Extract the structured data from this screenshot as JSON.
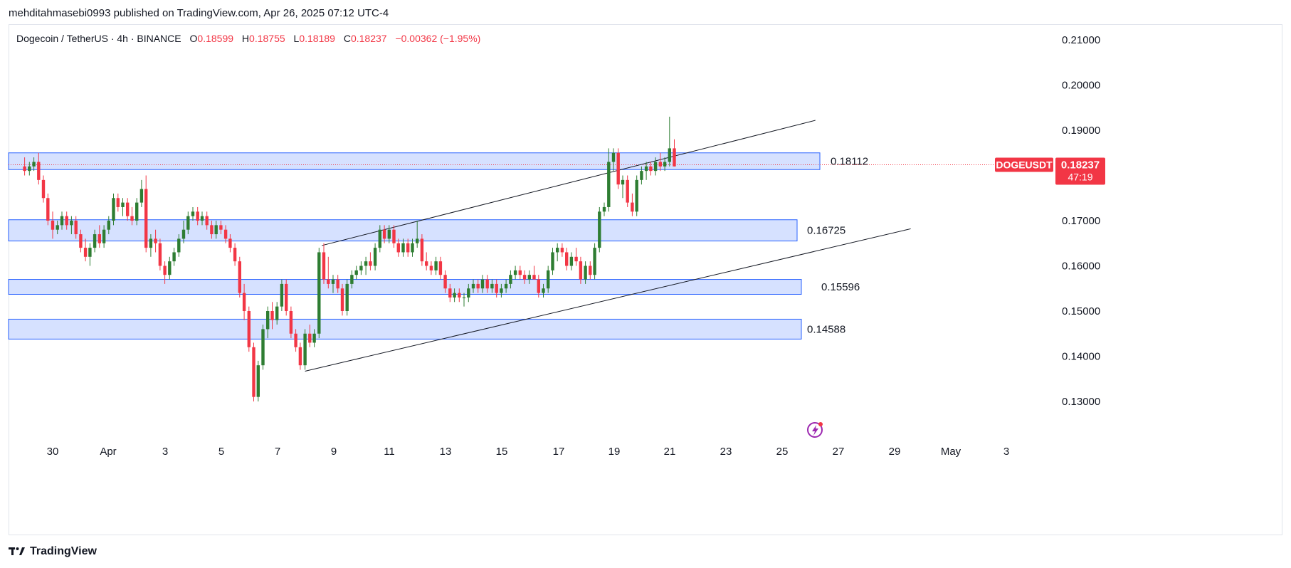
{
  "header": {
    "published_text": "mehditahmasebi0993 published on TradingView.com, Apr 26, 2025 07:12 UTC-4"
  },
  "legend": {
    "symbol_text": "Dogecoin / TetherUS · 4h · BINANCE",
    "open_label": "O",
    "open_value": "0.18599",
    "high_label": "H",
    "high_value": "0.18755",
    "low_label": "L",
    "low_value": "0.18189",
    "close_label": "C",
    "close_value": "0.18237",
    "change_text": "−0.00362 (−1.95%)"
  },
  "price_scale": {
    "labels": [
      "0.21000",
      "0.20000",
      "0.19000",
      "0.17000",
      "0.16000",
      "0.15000",
      "0.14000",
      "0.13000"
    ],
    "ticks": [
      0.21,
      0.2,
      0.19,
      0.17,
      0.16,
      0.15,
      0.14,
      0.13
    ]
  },
  "time_scale": {
    "labels": [
      "30",
      "Apr",
      "3",
      "5",
      "7",
      "9",
      "11",
      "13",
      "15",
      "17",
      "19",
      "21",
      "23",
      "25",
      "27",
      "29",
      "May",
      "3"
    ]
  },
  "current_price": {
    "symbol_label": "DOGEUSDT",
    "price": "0.18237",
    "countdown": "47:19",
    "value": 0.18237
  },
  "zones": [
    {
      "label": "0.18112",
      "top": 0.185,
      "bottom": 0.1813
    },
    {
      "label": "0.16725",
      "top": 0.1702,
      "bottom": 0.1655
    },
    {
      "label": "0.15596",
      "top": 0.157,
      "bottom": 0.1537
    },
    {
      "label": "0.14588",
      "top": 0.1482,
      "bottom": 0.1438
    }
  ],
  "trendlines": [
    {
      "name": "channel-upper",
      "from": [
        9.6,
        0.1645
      ],
      "to": [
        27.2,
        0.1922
      ]
    },
    {
      "name": "channel-lower",
      "from": [
        9.0,
        0.1367
      ],
      "to": [
        30.6,
        0.1682
      ]
    }
  ],
  "candles": [
    [
      -1,
      0.182,
      0.184,
      0.18,
      0.181
    ],
    [
      -0.83,
      0.181,
      0.183,
      0.18,
      0.182
    ],
    [
      -0.67,
      0.182,
      0.184,
      0.181,
      0.183
    ],
    [
      -0.5,
      0.183,
      0.185,
      0.178,
      0.179
    ],
    [
      -0.33,
      0.179,
      0.18,
      0.174,
      0.175
    ],
    [
      -0.17,
      0.175,
      0.176,
      0.169,
      0.17
    ],
    [
      0,
      0.17,
      0.172,
      0.166,
      0.168
    ],
    [
      0.17,
      0.168,
      0.17,
      0.167,
      0.169
    ],
    [
      0.33,
      0.169,
      0.172,
      0.168,
      0.171
    ],
    [
      0.5,
      0.171,
      0.172,
      0.168,
      0.169
    ],
    [
      0.67,
      0.169,
      0.171,
      0.167,
      0.17
    ],
    [
      0.83,
      0.17,
      0.171,
      0.166,
      0.167
    ],
    [
      1,
      0.167,
      0.168,
      0.163,
      0.164
    ],
    [
      1.17,
      0.164,
      0.166,
      0.161,
      0.162
    ],
    [
      1.33,
      0.162,
      0.165,
      0.16,
      0.164
    ],
    [
      1.5,
      0.164,
      0.168,
      0.163,
      0.167
    ],
    [
      1.67,
      0.167,
      0.169,
      0.164,
      0.165
    ],
    [
      1.83,
      0.165,
      0.169,
      0.164,
      0.168
    ],
    [
      2,
      0.168,
      0.171,
      0.167,
      0.17
    ],
    [
      2.17,
      0.17,
      0.176,
      0.169,
      0.175
    ],
    [
      2.33,
      0.175,
      0.176,
      0.172,
      0.173
    ],
    [
      2.5,
      0.173,
      0.175,
      0.171,
      0.174
    ],
    [
      2.67,
      0.174,
      0.175,
      0.17,
      0.171
    ],
    [
      2.83,
      0.171,
      0.173,
      0.169,
      0.17
    ],
    [
      3,
      0.17,
      0.175,
      0.169,
      0.174
    ],
    [
      3.17,
      0.174,
      0.179,
      0.173,
      0.177
    ],
    [
      3.33,
      0.177,
      0.18,
      0.163,
      0.164
    ],
    [
      3.5,
      0.164,
      0.167,
      0.162,
      0.166
    ],
    [
      3.67,
      0.166,
      0.168,
      0.163,
      0.165
    ],
    [
      3.83,
      0.165,
      0.166,
      0.159,
      0.16
    ],
    [
      4,
      0.16,
      0.161,
      0.156,
      0.158
    ],
    [
      4.17,
      0.158,
      0.162,
      0.157,
      0.161
    ],
    [
      4.33,
      0.161,
      0.164,
      0.16,
      0.163
    ],
    [
      4.5,
      0.163,
      0.167,
      0.162,
      0.166
    ],
    [
      4.67,
      0.166,
      0.17,
      0.165,
      0.168
    ],
    [
      4.83,
      0.168,
      0.172,
      0.167,
      0.171
    ],
    [
      5,
      0.171,
      0.173,
      0.17,
      0.172
    ],
    [
      5.17,
      0.172,
      0.173,
      0.169,
      0.17
    ],
    [
      5.33,
      0.17,
      0.172,
      0.169,
      0.171
    ],
    [
      5.5,
      0.171,
      0.172,
      0.168,
      0.169
    ],
    [
      5.67,
      0.169,
      0.17,
      0.166,
      0.167
    ],
    [
      5.83,
      0.167,
      0.17,
      0.166,
      0.169
    ],
    [
      6,
      0.169,
      0.17,
      0.167,
      0.168
    ],
    [
      6.17,
      0.168,
      0.169,
      0.165,
      0.166
    ],
    [
      6.33,
      0.166,
      0.167,
      0.163,
      0.164
    ],
    [
      6.5,
      0.164,
      0.165,
      0.16,
      0.161
    ],
    [
      6.67,
      0.161,
      0.162,
      0.153,
      0.154
    ],
    [
      6.83,
      0.154,
      0.156,
      0.148,
      0.15
    ],
    [
      7,
      0.15,
      0.151,
      0.141,
      0.142
    ],
    [
      7.17,
      0.142,
      0.143,
      0.13,
      0.131
    ],
    [
      7.33,
      0.131,
      0.139,
      0.13,
      0.138
    ],
    [
      7.5,
      0.138,
      0.147,
      0.137,
      0.146
    ],
    [
      7.67,
      0.146,
      0.151,
      0.144,
      0.15
    ],
    [
      7.83,
      0.15,
      0.152,
      0.146,
      0.148
    ],
    [
      8,
      0.148,
      0.152,
      0.147,
      0.151
    ],
    [
      8.17,
      0.151,
      0.157,
      0.15,
      0.156
    ],
    [
      8.33,
      0.156,
      0.157,
      0.149,
      0.15
    ],
    [
      8.5,
      0.15,
      0.151,
      0.144,
      0.145
    ],
    [
      8.67,
      0.145,
      0.146,
      0.141,
      0.142
    ],
    [
      8.83,
      0.142,
      0.143,
      0.137,
      0.138
    ],
    [
      9,
      0.138,
      0.146,
      0.137,
      0.145
    ],
    [
      9.17,
      0.145,
      0.147,
      0.142,
      0.143
    ],
    [
      9.33,
      0.143,
      0.146,
      0.142,
      0.145
    ],
    [
      9.5,
      0.145,
      0.164,
      0.144,
      0.163
    ],
    [
      9.67,
      0.163,
      0.165,
      0.156,
      0.157
    ],
    [
      9.83,
      0.157,
      0.162,
      0.155,
      0.156
    ],
    [
      10,
      0.156,
      0.158,
      0.154,
      0.157
    ],
    [
      10.17,
      0.157,
      0.158,
      0.154,
      0.155
    ],
    [
      10.33,
      0.155,
      0.156,
      0.149,
      0.15
    ],
    [
      10.5,
      0.15,
      0.157,
      0.149,
      0.156
    ],
    [
      10.67,
      0.156,
      0.159,
      0.155,
      0.158
    ],
    [
      10.83,
      0.158,
      0.16,
      0.157,
      0.159
    ],
    [
      11,
      0.159,
      0.161,
      0.158,
      0.16
    ],
    [
      11.17,
      0.16,
      0.162,
      0.158,
      0.161
    ],
    [
      11.33,
      0.161,
      0.163,
      0.159,
      0.16
    ],
    [
      11.5,
      0.16,
      0.165,
      0.159,
      0.164
    ],
    [
      11.67,
      0.164,
      0.169,
      0.163,
      0.168
    ],
    [
      11.83,
      0.168,
      0.169,
      0.165,
      0.166
    ],
    [
      12,
      0.166,
      0.169,
      0.165,
      0.168
    ],
    [
      12.17,
      0.168,
      0.169,
      0.164,
      0.165
    ],
    [
      12.33,
      0.165,
      0.166,
      0.162,
      0.163
    ],
    [
      12.5,
      0.163,
      0.166,
      0.162,
      0.165
    ],
    [
      12.67,
      0.165,
      0.166,
      0.162,
      0.163
    ],
    [
      12.83,
      0.163,
      0.166,
      0.162,
      0.165
    ],
    [
      13,
      0.165,
      0.17,
      0.164,
      0.166
    ],
    [
      13.17,
      0.166,
      0.167,
      0.16,
      0.161
    ],
    [
      13.33,
      0.161,
      0.163,
      0.159,
      0.16
    ],
    [
      13.5,
      0.16,
      0.161,
      0.158,
      0.159
    ],
    [
      13.67,
      0.159,
      0.162,
      0.158,
      0.161
    ],
    [
      13.83,
      0.161,
      0.162,
      0.157,
      0.158
    ],
    [
      14,
      0.158,
      0.159,
      0.154,
      0.155
    ],
    [
      14.17,
      0.155,
      0.156,
      0.152,
      0.153
    ],
    [
      14.33,
      0.153,
      0.155,
      0.152,
      0.154
    ],
    [
      14.5,
      0.154,
      0.155,
      0.152,
      0.153
    ],
    [
      14.67,
      0.153,
      0.154,
      0.151,
      0.153
    ],
    [
      14.83,
      0.153,
      0.156,
      0.152,
      0.155
    ],
    [
      15,
      0.155,
      0.157,
      0.154,
      0.156
    ],
    [
      15.17,
      0.156,
      0.157,
      0.154,
      0.155
    ],
    [
      15.33,
      0.155,
      0.158,
      0.154,
      0.157
    ],
    [
      15.5,
      0.157,
      0.158,
      0.154,
      0.155
    ],
    [
      15.67,
      0.155,
      0.157,
      0.154,
      0.156
    ],
    [
      15.83,
      0.156,
      0.157,
      0.153,
      0.154
    ],
    [
      16,
      0.154,
      0.156,
      0.153,
      0.155
    ],
    [
      16.17,
      0.155,
      0.157,
      0.154,
      0.156
    ],
    [
      16.33,
      0.156,
      0.159,
      0.155,
      0.158
    ],
    [
      16.5,
      0.158,
      0.16,
      0.157,
      0.159
    ],
    [
      16.67,
      0.159,
      0.16,
      0.157,
      0.158
    ],
    [
      16.83,
      0.158,
      0.159,
      0.156,
      0.157
    ],
    [
      17,
      0.157,
      0.159,
      0.156,
      0.158
    ],
    [
      17.17,
      0.158,
      0.16,
      0.157,
      0.157
    ],
    [
      17.33,
      0.157,
      0.158,
      0.153,
      0.154
    ],
    [
      17.5,
      0.154,
      0.156,
      0.153,
      0.155
    ],
    [
      17.67,
      0.155,
      0.16,
      0.154,
      0.159
    ],
    [
      17.83,
      0.159,
      0.164,
      0.158,
      0.163
    ],
    [
      18,
      0.163,
      0.165,
      0.161,
      0.164
    ],
    [
      18.17,
      0.164,
      0.165,
      0.162,
      0.163
    ],
    [
      18.33,
      0.163,
      0.164,
      0.159,
      0.16
    ],
    [
      18.5,
      0.16,
      0.163,
      0.159,
      0.162
    ],
    [
      18.67,
      0.162,
      0.164,
      0.16,
      0.161
    ],
    [
      18.83,
      0.161,
      0.162,
      0.156,
      0.157
    ],
    [
      19,
      0.157,
      0.161,
      0.156,
      0.16
    ],
    [
      19.17,
      0.16,
      0.161,
      0.157,
      0.158
    ],
    [
      19.33,
      0.158,
      0.165,
      0.157,
      0.164
    ],
    [
      19.5,
      0.164,
      0.173,
      0.163,
      0.172
    ],
    [
      19.67,
      0.172,
      0.174,
      0.171,
      0.173
    ],
    [
      19.83,
      0.173,
      0.186,
      0.172,
      0.183
    ],
    [
      20,
      0.183,
      0.186,
      0.181,
      0.185
    ],
    [
      20.17,
      0.185,
      0.186,
      0.177,
      0.178
    ],
    [
      20.33,
      0.178,
      0.18,
      0.175,
      0.179
    ],
    [
      20.5,
      0.179,
      0.18,
      0.173,
      0.174
    ],
    [
      20.67,
      0.174,
      0.176,
      0.171,
      0.172
    ],
    [
      20.83,
      0.172,
      0.18,
      0.171,
      0.179
    ],
    [
      21,
      0.179,
      0.182,
      0.178,
      0.181
    ],
    [
      21.17,
      0.181,
      0.183,
      0.179,
      0.182
    ],
    [
      21.33,
      0.182,
      0.183,
      0.18,
      0.181
    ],
    [
      21.5,
      0.181,
      0.184,
      0.18,
      0.183
    ],
    [
      21.67,
      0.183,
      0.185,
      0.181,
      0.182
    ],
    [
      21.83,
      0.182,
      0.184,
      0.181,
      0.183
    ],
    [
      22,
      0.183,
      0.193,
      0.182,
      0.186
    ],
    [
      22.17,
      0.186,
      0.188,
      0.182,
      0.182
    ]
  ]
}
